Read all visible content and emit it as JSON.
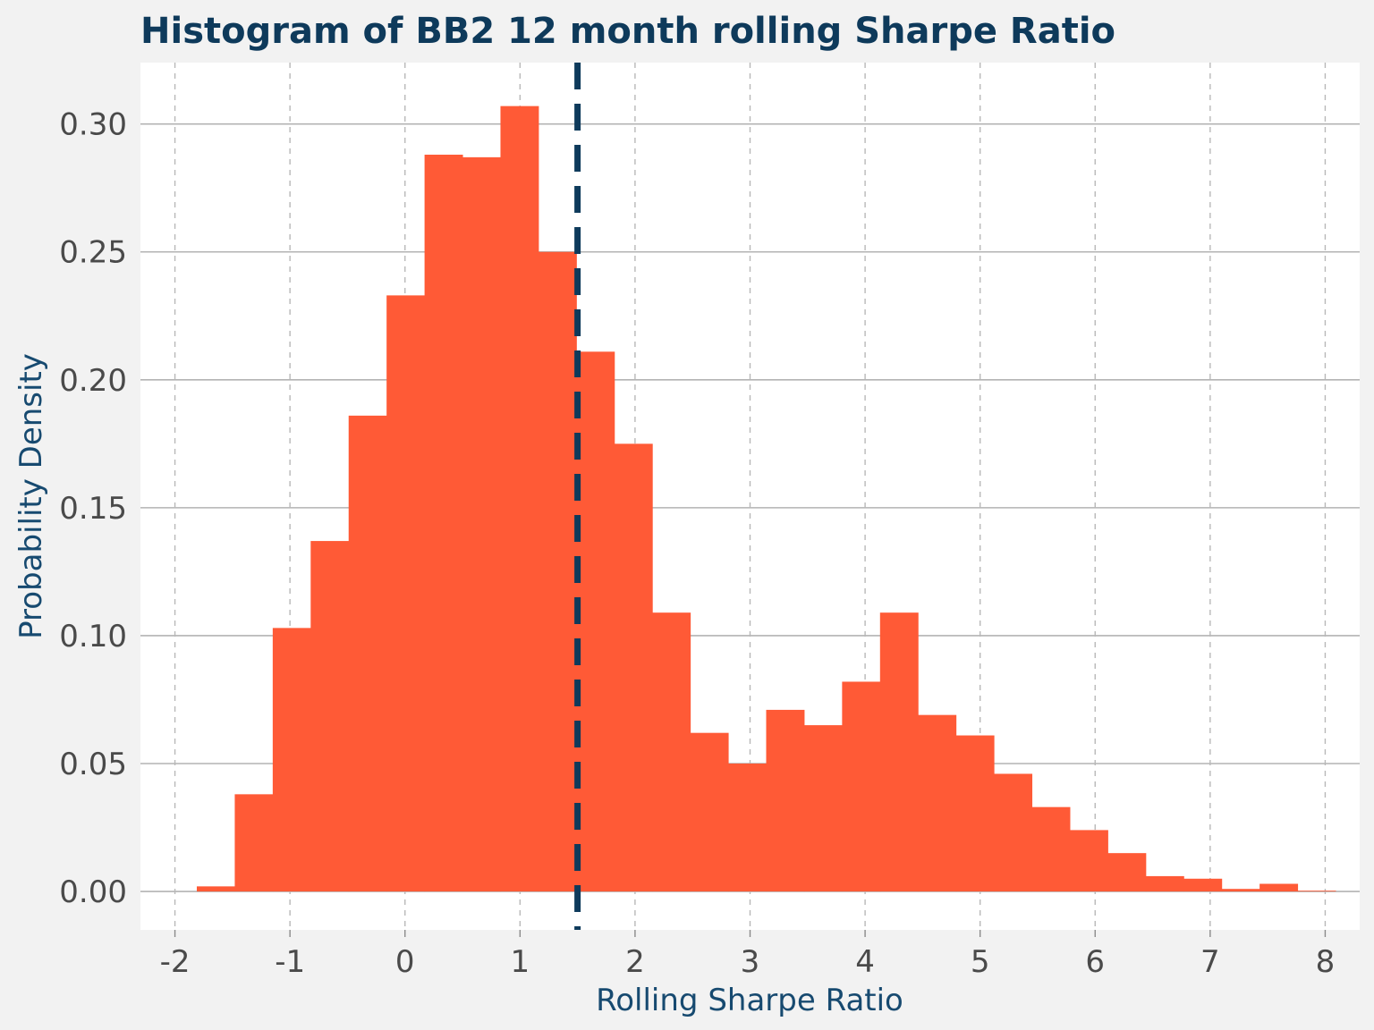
{
  "chart_data": {
    "type": "bar",
    "title": "Histogram of BB2 12 month rolling Sharpe Ratio",
    "xlabel": "Rolling Sharpe Ratio",
    "ylabel": "Probability Density",
    "xlim": [
      -2.3,
      8.3
    ],
    "ylim": [
      -0.015,
      0.324
    ],
    "xticks": [
      -2,
      -1,
      0,
      1,
      2,
      3,
      4,
      5,
      6,
      7,
      8
    ],
    "xtick_labels": [
      "-2",
      "-1",
      "0",
      "1",
      "2",
      "3",
      "4",
      "5",
      "6",
      "7",
      "8"
    ],
    "yticks": [
      0.0,
      0.05,
      0.1,
      0.15,
      0.2,
      0.25,
      0.3
    ],
    "ytick_labels": [
      "0.00",
      "0.05",
      "0.10",
      "0.15",
      "0.20",
      "0.25",
      "0.30"
    ],
    "grid": {
      "x": "dashed",
      "y": "solid"
    },
    "bar_color": "#ff5a36",
    "mean_line": {
      "x": 1.5,
      "style": "dashed",
      "color": "#0e3a5b"
    },
    "bins": [
      {
        "x0": -1.81,
        "x1": -1.48,
        "density": 0.002
      },
      {
        "x0": -1.48,
        "x1": -1.15,
        "density": 0.038
      },
      {
        "x0": -1.15,
        "x1": -0.82,
        "density": 0.103
      },
      {
        "x0": -0.82,
        "x1": -0.49,
        "density": 0.137
      },
      {
        "x0": -0.49,
        "x1": -0.16,
        "density": 0.186
      },
      {
        "x0": -0.16,
        "x1": 0.17,
        "density": 0.233
      },
      {
        "x0": 0.17,
        "x1": 0.5,
        "density": 0.288
      },
      {
        "x0": 0.5,
        "x1": 0.83,
        "density": 0.287
      },
      {
        "x0": 0.83,
        "x1": 1.16,
        "density": 0.307
      },
      {
        "x0": 1.16,
        "x1": 1.49,
        "density": 0.25
      },
      {
        "x0": 1.49,
        "x1": 1.82,
        "density": 0.211
      },
      {
        "x0": 1.82,
        "x1": 2.15,
        "density": 0.175
      },
      {
        "x0": 2.15,
        "x1": 2.48,
        "density": 0.109
      },
      {
        "x0": 2.48,
        "x1": 2.81,
        "density": 0.062
      },
      {
        "x0": 2.81,
        "x1": 3.14,
        "density": 0.05
      },
      {
        "x0": 3.14,
        "x1": 3.47,
        "density": 0.071
      },
      {
        "x0": 3.47,
        "x1": 3.8,
        "density": 0.065
      },
      {
        "x0": 3.8,
        "x1": 4.13,
        "density": 0.082
      },
      {
        "x0": 4.13,
        "x1": 4.46,
        "density": 0.109
      },
      {
        "x0": 4.46,
        "x1": 4.79,
        "density": 0.069
      },
      {
        "x0": 4.79,
        "x1": 5.12,
        "density": 0.061
      },
      {
        "x0": 5.12,
        "x1": 5.45,
        "density": 0.046
      },
      {
        "x0": 5.45,
        "x1": 5.78,
        "density": 0.033
      },
      {
        "x0": 5.78,
        "x1": 6.11,
        "density": 0.024
      },
      {
        "x0": 6.11,
        "x1": 6.44,
        "density": 0.015
      },
      {
        "x0": 6.44,
        "x1": 6.77,
        "density": 0.006
      },
      {
        "x0": 6.77,
        "x1": 7.1,
        "density": 0.005
      },
      {
        "x0": 7.1,
        "x1": 7.43,
        "density": 0.001
      },
      {
        "x0": 7.43,
        "x1": 7.76,
        "density": 0.003
      },
      {
        "x0": 7.76,
        "x1": 8.09,
        "density": 0.0003
      }
    ]
  }
}
